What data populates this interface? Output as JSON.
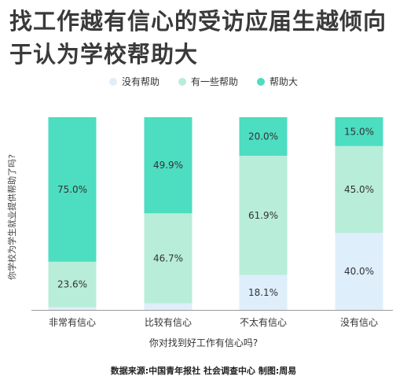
{
  "title": "找工作越有信心的受访应届生越倾向于认为学校帮助大",
  "source": "数据来源:中国青年报社 社会调查中心  制图:周易",
  "chart_data": {
    "type": "bar",
    "stacked": true,
    "categories": [
      "非常有信心",
      "比较有信心",
      "不太有信心",
      "没有信心"
    ],
    "series": [
      {
        "name": "没有帮助",
        "color": "#dfeefb",
        "values": [
          1.4,
          3.4,
          18.1,
          40.0
        ],
        "labels": [
          "",
          "",
          "18.1%",
          "40.0%"
        ]
      },
      {
        "name": "有一些帮助",
        "color": "#b8edd9",
        "values": [
          23.6,
          46.7,
          61.9,
          45.0
        ],
        "labels": [
          "23.6%",
          "46.7%",
          "61.9%",
          "45.0%"
        ]
      },
      {
        "name": "帮助大",
        "color": "#4dddc1",
        "values": [
          75.0,
          49.9,
          20.0,
          15.0
        ],
        "labels": [
          "75.0%",
          "49.9%",
          "20.0%",
          "15.0%"
        ]
      }
    ],
    "xlabel": "你对找到好工作有信心吗?",
    "ylabel": "你学校为学生就业提供帮助了吗?",
    "ylim": [
      0,
      100
    ],
    "legend_position": "top-center",
    "grid": false
  }
}
